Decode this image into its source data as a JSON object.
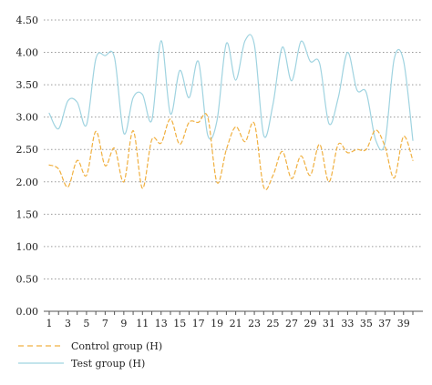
{
  "chart_data": {
    "type": "line",
    "title": "",
    "xlabel": "",
    "ylabel": "",
    "x": [
      1,
      2,
      3,
      4,
      5,
      6,
      7,
      8,
      9,
      10,
      11,
      12,
      13,
      14,
      15,
      16,
      17,
      18,
      19,
      20,
      21,
      22,
      23,
      24,
      25,
      26,
      27,
      28,
      29,
      30,
      31,
      32,
      33,
      34,
      35,
      36,
      37,
      38,
      39,
      40
    ],
    "x_tick_labels": [
      "1",
      "3",
      "5",
      "7",
      "9",
      "11",
      "13",
      "15",
      "17",
      "19",
      "21",
      "23",
      "25",
      "27",
      "29",
      "31",
      "33",
      "35",
      "37",
      "39"
    ],
    "y_tick_labels": [
      "0.00",
      "0.50",
      "1.00",
      "1.50",
      "2.00",
      "2.50",
      "3.00",
      "3.50",
      "4.00",
      "4.50"
    ],
    "ylim": [
      0,
      4.5
    ],
    "grid": "horizontal-dotted",
    "legend_position": "bottom-left",
    "series": [
      {
        "name": "Control group (H)",
        "color": "#f0b040",
        "dash": "dashed",
        "values": [
          2.26,
          2.2,
          1.92,
          2.33,
          2.1,
          2.78,
          2.25,
          2.52,
          2.0,
          2.79,
          1.9,
          2.65,
          2.6,
          2.97,
          2.58,
          2.92,
          2.92,
          3.0,
          1.99,
          2.5,
          2.85,
          2.62,
          2.9,
          1.92,
          2.1,
          2.47,
          2.05,
          2.4,
          2.1,
          2.58,
          2.0,
          2.58,
          2.45,
          2.5,
          2.5,
          2.8,
          2.55,
          2.06,
          2.7,
          2.33
        ]
      },
      {
        "name": "Test group (H)",
        "color": "#9fd3e0",
        "dash": "solid",
        "values": [
          3.06,
          2.82,
          3.25,
          3.23,
          2.88,
          3.9,
          3.95,
          3.92,
          2.75,
          3.3,
          3.35,
          2.95,
          4.18,
          3.05,
          3.72,
          3.3,
          3.86,
          2.72,
          2.95,
          4.14,
          3.57,
          4.18,
          4.12,
          2.72,
          3.2,
          4.08,
          3.56,
          4.17,
          3.86,
          3.83,
          2.9,
          3.3,
          4.0,
          3.42,
          3.38,
          2.65,
          2.6,
          3.9,
          3.87,
          2.64
        ]
      }
    ]
  }
}
